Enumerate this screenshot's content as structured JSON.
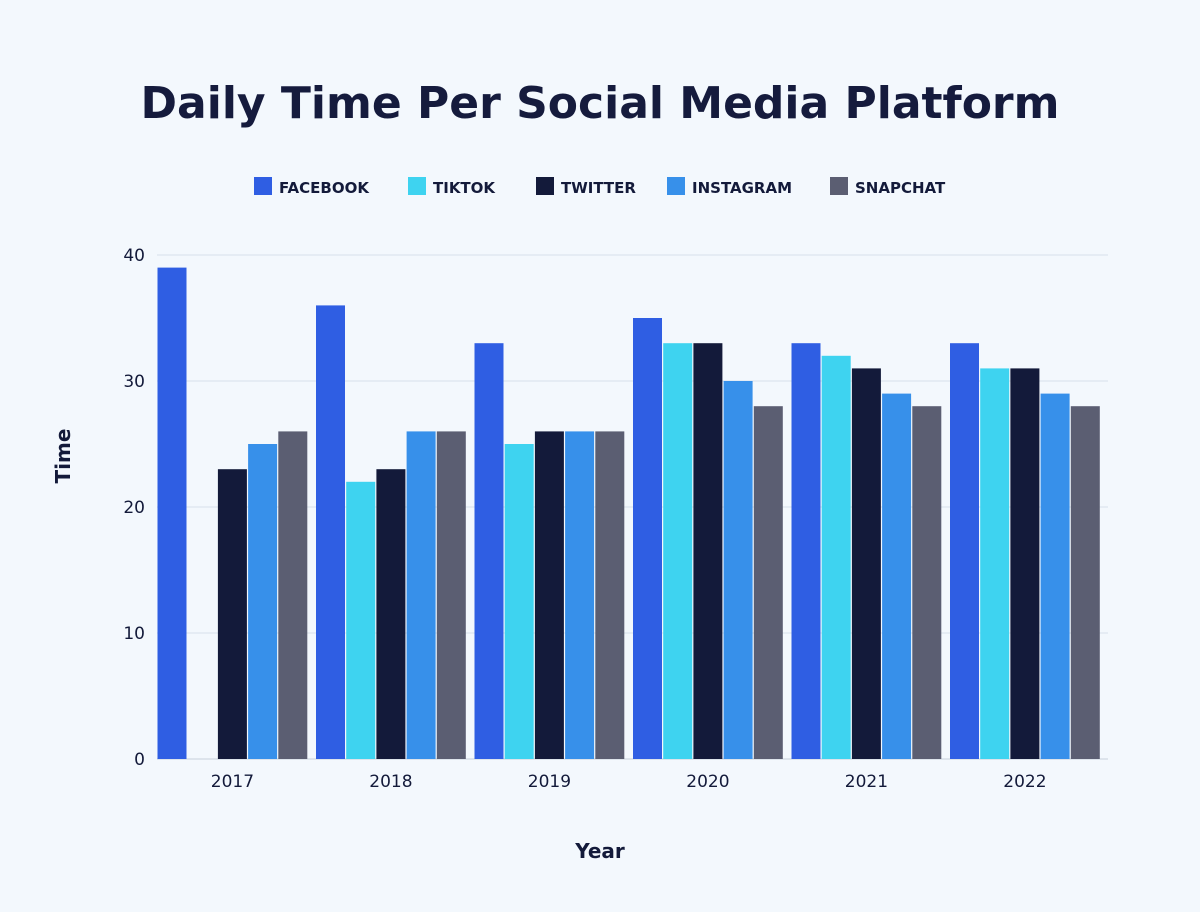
{
  "chart_data": {
    "type": "bar",
    "title": "Daily Time Per Social Media Platform",
    "xlabel": "Year",
    "ylabel": "Time",
    "ylim": [
      0,
      40
    ],
    "yticks": [
      "0",
      "10",
      "20",
      "30",
      "40"
    ],
    "grid": true,
    "legend_position": "top",
    "categories": [
      "2017",
      "2018",
      "2019",
      "2020",
      "2021",
      "2022"
    ],
    "series": [
      {
        "name": "FACEBOOK",
        "color": "#2f5ee3",
        "values": [
          39,
          36,
          33,
          35,
          33,
          33
        ]
      },
      {
        "name": "TIKTOK",
        "color": "#3ed3f0",
        "values": [
          null,
          22,
          25,
          33,
          32,
          31
        ]
      },
      {
        "name": "TWITTER",
        "color": "#131a3a",
        "values": [
          23,
          23,
          26,
          33,
          31,
          31
        ]
      },
      {
        "name": "INSTAGRAM",
        "color": "#3790ea",
        "values": [
          25,
          26,
          26,
          30,
          29,
          29
        ]
      },
      {
        "name": "SNAPCHAT",
        "color": "#5b5e72",
        "values": [
          26,
          26,
          26,
          28,
          28,
          28
        ]
      }
    ]
  }
}
